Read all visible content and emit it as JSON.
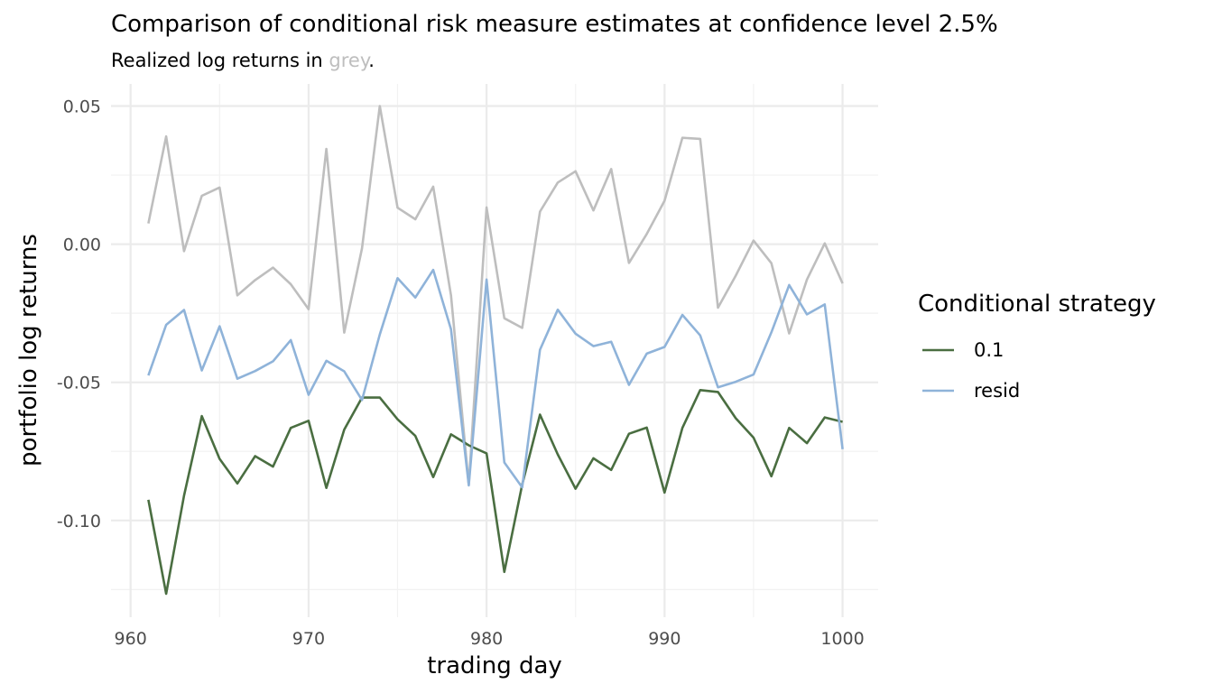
{
  "chart_data": {
    "type": "line",
    "title": "Comparison of conditional risk measure estimates at confidence level 2.5%",
    "subtitle": {
      "before": "Realized log returns in ",
      "highlight": "grey",
      "after": "."
    },
    "xlabel": "trading day",
    "ylabel": "portfolio log returns",
    "xlim": [
      958.9,
      1002
    ],
    "ylim": [
      -0.135,
      0.058
    ],
    "x_ticks": [
      960,
      970,
      980,
      990,
      1000
    ],
    "x_tick_labels": [
      "960",
      "970",
      "980",
      "990",
      "1000"
    ],
    "y_ticks": [
      -0.1,
      -0.05,
      0.0,
      0.05
    ],
    "y_tick_labels": [
      "-0.10",
      "-0.05",
      "0.00",
      "0.05"
    ],
    "grid": true,
    "x": [
      961,
      962,
      963,
      964,
      965,
      966,
      967,
      968,
      969,
      970,
      971,
      972,
      973,
      974,
      975,
      976,
      977,
      978,
      979,
      980,
      981,
      982,
      983,
      984,
      985,
      986,
      987,
      988,
      989,
      990,
      991,
      992,
      993,
      994,
      995,
      996,
      997,
      998,
      999,
      1000
    ],
    "realized": {
      "color": "#bebebe",
      "values": [
        0.0075,
        0.039,
        -0.0025,
        0.0175,
        0.0205,
        -0.0185,
        -0.013,
        -0.0085,
        -0.0145,
        -0.0235,
        0.0345,
        -0.032,
        -0.0015,
        0.05,
        0.0132,
        0.009,
        0.0208,
        -0.0185,
        -0.087,
        0.0133,
        -0.0268,
        -0.0303,
        0.0118,
        0.0223,
        0.0264,
        0.0122,
        0.0272,
        -0.0068,
        0.0037,
        0.0157,
        0.0385,
        0.0381,
        -0.023,
        -0.0114,
        0.0013,
        -0.0069,
        -0.0323,
        -0.0128,
        0.0003,
        -0.0142
      ]
    },
    "series": [
      {
        "name": "0.1",
        "color": "#4a6e41",
        "values": [
          -0.0925,
          -0.1265,
          -0.091,
          -0.0622,
          -0.0777,
          -0.0866,
          -0.0767,
          -0.0805,
          -0.0665,
          -0.0639,
          -0.0882,
          -0.0671,
          -0.0555,
          -0.0555,
          -0.0634,
          -0.0694,
          -0.0843,
          -0.0688,
          -0.0728,
          -0.0757,
          -0.1186,
          -0.087,
          -0.0617,
          -0.0761,
          -0.0885,
          -0.0775,
          -0.0817,
          -0.0686,
          -0.0664,
          -0.0899,
          -0.0665,
          -0.0528,
          -0.0535,
          -0.063,
          -0.07,
          -0.084,
          -0.0665,
          -0.072,
          -0.0627,
          -0.0643
        ]
      },
      {
        "name": "resid",
        "color": "#8fb3d9",
        "values": [
          -0.0475,
          -0.0292,
          -0.0238,
          -0.0457,
          -0.0297,
          -0.0487,
          -0.0459,
          -0.0424,
          -0.0347,
          -0.0545,
          -0.0422,
          -0.046,
          -0.0564,
          -0.0327,
          -0.0123,
          -0.0193,
          -0.0093,
          -0.0308,
          -0.0873,
          -0.0128,
          -0.079,
          -0.088,
          -0.0382,
          -0.0237,
          -0.0324,
          -0.0369,
          -0.0353,
          -0.0509,
          -0.0396,
          -0.0372,
          -0.0256,
          -0.033,
          -0.0518,
          -0.0498,
          -0.0472,
          -0.0319,
          -0.0148,
          -0.0254,
          -0.0218,
          -0.0742
        ]
      }
    ],
    "legend": {
      "title": "Conditional strategy",
      "placement": "right"
    }
  }
}
